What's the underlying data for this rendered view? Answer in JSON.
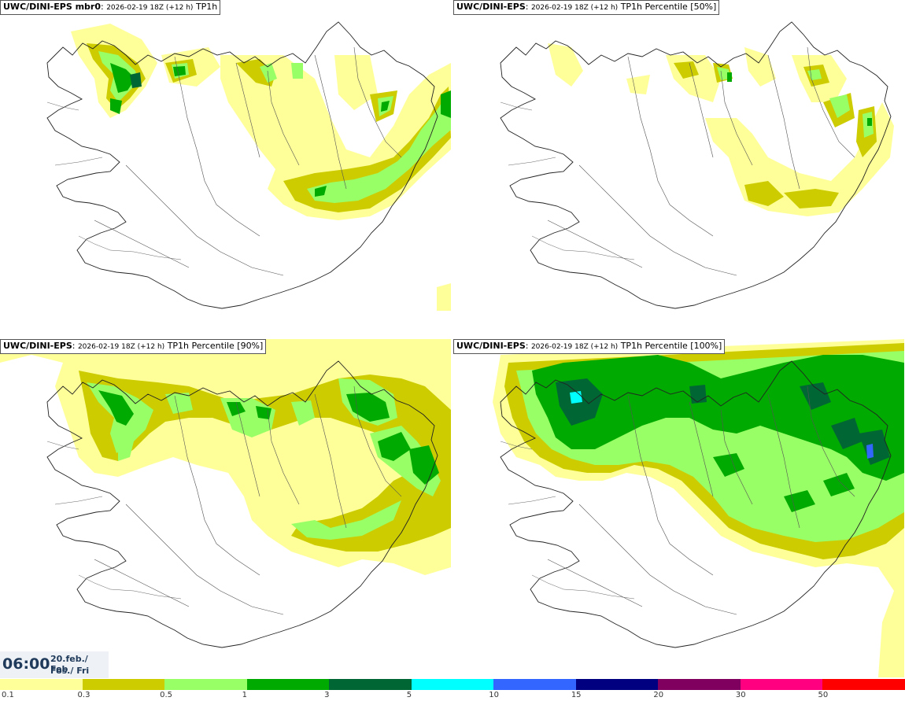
{
  "panels": [
    {
      "name": "UWC/DINI-EPS mbr0",
      "meta": "2026-02-19 18Z (+12 h)",
      "field": "TP1h"
    },
    {
      "name": "UWC/DINI-EPS",
      "meta": "2026-02-19 18Z (+12 h)",
      "field": "TP1h Percentile [50%]"
    },
    {
      "name": "UWC/DINI-EPS",
      "meta": "2026-02-19 18Z (+12 h)",
      "field": "TP1h Percentile [90%]"
    },
    {
      "name": "UWC/DINI-EPS",
      "meta": "2026-02-19 18Z (+12 h)",
      "field": "TP1h Percentile [100%]"
    }
  ],
  "valid_time": {
    "time": "06:00",
    "date": "20.feb./ Feb",
    "day": "Fös./ Fri"
  },
  "legend": {
    "labels": [
      "0.1",
      "0.3",
      "0.5",
      "1",
      "3",
      "5",
      "10",
      "15",
      "20",
      "30",
      "50"
    ],
    "colors": [
      "#ffff99",
      "#cccc00",
      "#99ff66",
      "#00aa00",
      "#006633",
      "#00ffff",
      "#3366ff",
      "#000080",
      "#800060",
      "#ff0080",
      "#ff0000"
    ]
  }
}
